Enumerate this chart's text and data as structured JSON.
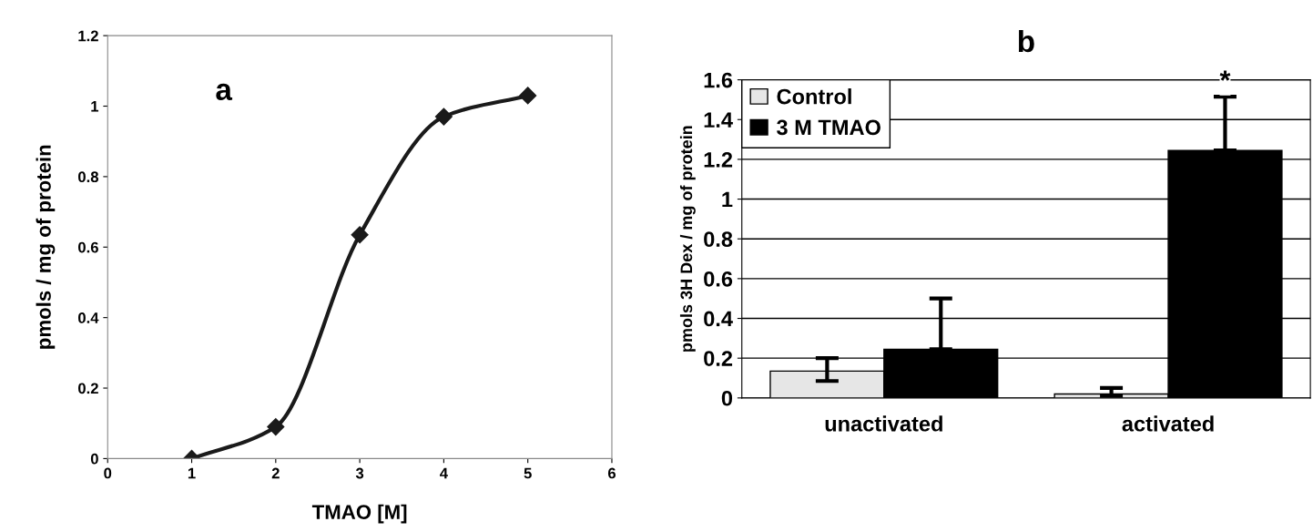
{
  "chart_data": [
    {
      "type": "line",
      "title": "a",
      "xlabel": "TMAO [M]",
      "ylabel": "pmols / mg of protein",
      "x": [
        1,
        2,
        3,
        4,
        5
      ],
      "series": [
        {
          "color": "#1a1a1a",
          "values": [
            0,
            0.09,
            0.635,
            0.97,
            1.03
          ]
        }
      ],
      "xlim": [
        0,
        6
      ],
      "xticks": [
        0,
        1,
        2,
        3,
        4,
        5,
        6
      ],
      "ylim": [
        0,
        1.2
      ],
      "yticks": [
        0,
        0.2,
        0.4,
        0.6,
        0.8,
        1,
        1.2
      ],
      "marker": "diamond",
      "line_style": "solid",
      "grid": false
    },
    {
      "type": "bar",
      "title": "b",
      "ylabel": "pmols 3H Dex / mg of protein",
      "categories": [
        "unactivated",
        "activated"
      ],
      "series": [
        {
          "name": "Control",
          "color": "#e6e6e6",
          "values": [
            0.135,
            0.02
          ],
          "errors": [
            [
              0.085,
              0.2
            ],
            [
              0.01,
              0.05
            ]
          ]
        },
        {
          "name": "3 M TMAO",
          "color": "#000000",
          "values": [
            0.245,
            1.245
          ],
          "errors": [
            [
              0.245,
              0.5
            ],
            [
              1.245,
              1.515
            ]
          ]
        }
      ],
      "ylim": [
        0,
        1.6
      ],
      "yticks": [
        0,
        0.2,
        0.4,
        0.6,
        0.8,
        1,
        1.2,
        1.4,
        1.6
      ],
      "grid": "y",
      "legend": "top left",
      "annotations": [
        "*"
      ]
    }
  ]
}
